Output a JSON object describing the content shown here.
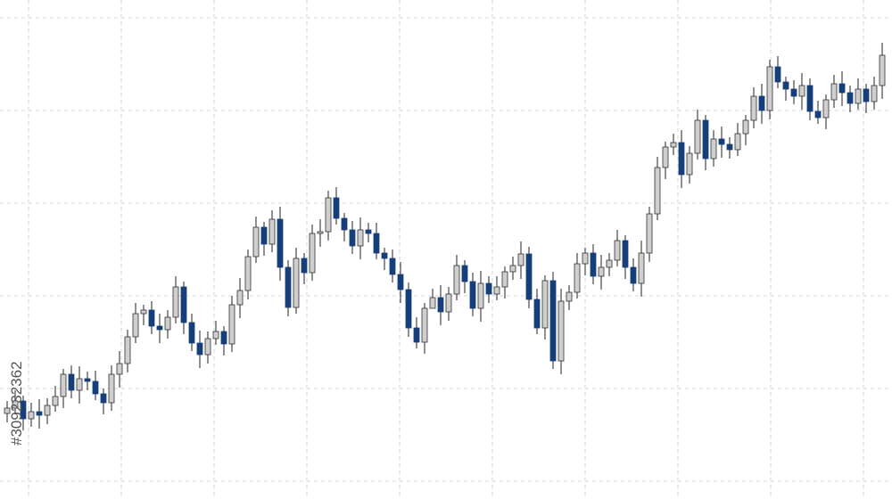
{
  "chart_data": {
    "type": "candlestick",
    "annotation": "#309232362",
    "ylim": [
      0,
      560
    ],
    "grid": true,
    "up_color": "#cfcfcf",
    "down_color": "#163f7a",
    "open": [
      96,
      102,
      110,
      90,
      98,
      94,
      105,
      115,
      140,
      122,
      135,
      132,
      118,
      108,
      140,
      152,
      182,
      208,
      212,
      194,
      190,
      204,
      238,
      198,
      175,
      162,
      180,
      188,
      174,
      218,
      234,
      272,
      305,
      286,
      314,
      260,
      215,
      270,
      254,
      298,
      300,
      338,
      315,
      302,
      284,
      302,
      298,
      276,
      270,
      252,
      235,
      192,
      176,
      214,
      226,
      210,
      230,
      262,
      244,
      214,
      242,
      230,
      238,
      255,
      262,
      275,
      224,
      192,
      245,
      155,
      222,
      232,
      264,
      276,
      250,
      260,
      268,
      290,
      260,
      242,
      276,
      320,
      372,
      395,
      400,
      364,
      388,
      425,
      382,
      404,
      398,
      392,
      410,
      425,
      452,
      436,
      485,
      468,
      460,
      452,
      464,
      435,
      428,
      448,
      466,
      456,
      444,
      460,
      446,
      464
    ],
    "high": [
      110,
      122,
      116,
      108,
      112,
      113,
      127,
      146,
      150,
      149,
      143,
      144,
      124,
      150,
      166,
      190,
      220,
      218,
      222,
      208,
      212,
      250,
      244,
      208,
      189,
      188,
      200,
      194,
      228,
      248,
      280,
      317,
      311,
      324,
      328,
      268,
      282,
      276,
      308,
      314,
      346,
      350,
      321,
      312,
      316,
      310,
      310,
      282,
      280,
      266,
      243,
      204,
      220,
      236,
      240,
      238,
      274,
      268,
      254,
      256,
      250,
      250,
      261,
      272,
      289,
      283,
      236,
      251,
      255,
      236,
      240,
      276,
      282,
      286,
      274,
      276,
      302,
      296,
      270,
      290,
      328,
      384,
      401,
      410,
      414,
      396,
      437,
      431,
      414,
      418,
      406,
      422,
      431,
      462,
      466,
      493,
      497,
      474,
      470,
      478,
      472,
      447,
      454,
      476,
      480,
      464,
      472,
      466,
      474,
      512
    ],
    "low": [
      86,
      95,
      77,
      81,
      79,
      84,
      98,
      102,
      113,
      107,
      122,
      111,
      95,
      99,
      125,
      142,
      175,
      195,
      185,
      175,
      180,
      197,
      185,
      166,
      147,
      152,
      173,
      161,
      165,
      203,
      224,
      265,
      273,
      277,
      245,
      205,
      208,
      241,
      245,
      283,
      290,
      308,
      289,
      275,
      269,
      288,
      269,
      257,
      243,
      220,
      182,
      169,
      163,
      217,
      195,
      200,
      223,
      231,
      205,
      199,
      220,
      223,
      225,
      246,
      247,
      214,
      185,
      179,
      146,
      140,
      212,
      225,
      251,
      241,
      235,
      250,
      261,
      247,
      233,
      227,
      266,
      313,
      359,
      386,
      349,
      354,
      381,
      369,
      373,
      383,
      382,
      385,
      397,
      416,
      421,
      426,
      461,
      447,
      443,
      437,
      425,
      421,
      415,
      439,
      441,
      434,
      437,
      433,
      437,
      449
    ],
    "close": [
      102,
      110,
      90,
      98,
      94,
      105,
      115,
      140,
      122,
      135,
      132,
      118,
      108,
      140,
      152,
      182,
      208,
      212,
      194,
      190,
      204,
      238,
      198,
      175,
      162,
      180,
      188,
      174,
      218,
      234,
      272,
      305,
      286,
      314,
      260,
      215,
      270,
      254,
      298,
      300,
      338,
      315,
      302,
      284,
      302,
      298,
      276,
      270,
      252,
      235,
      192,
      176,
      214,
      226,
      210,
      230,
      262,
      244,
      214,
      242,
      230,
      238,
      255,
      262,
      275,
      224,
      192,
      245,
      155,
      222,
      232,
      264,
      276,
      250,
      260,
      268,
      290,
      260,
      242,
      276,
      320,
      372,
      395,
      400,
      364,
      388,
      425,
      382,
      404,
      398,
      392,
      410,
      425,
      452,
      436,
      485,
      468,
      460,
      452,
      464,
      435,
      428,
      448,
      466,
      456,
      444,
      460,
      446,
      464,
      498
    ]
  }
}
